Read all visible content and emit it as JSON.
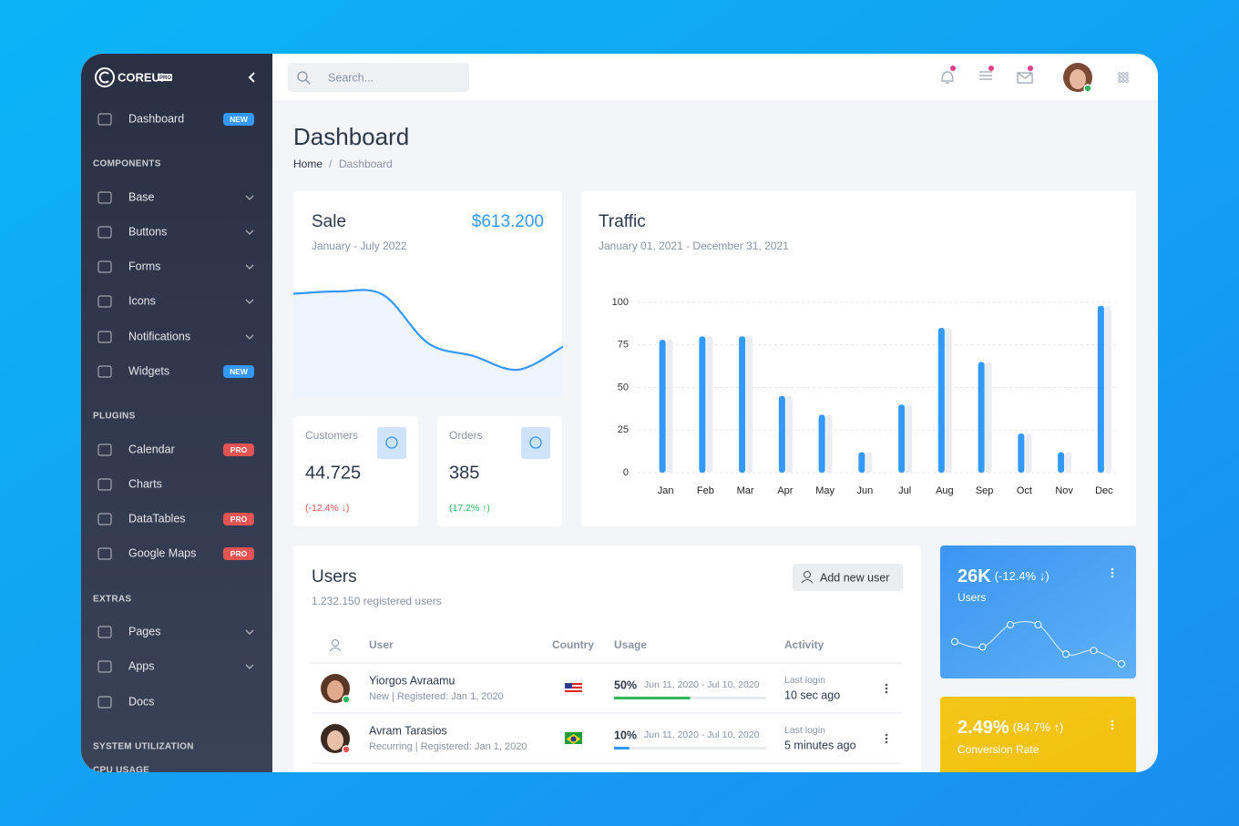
{
  "sidebar": {
    "brand": "COREUI",
    "brand_badge": "PRO",
    "nav": [
      {
        "label": "Dashboard",
        "badge": "NEW",
        "badge_color": "#3399ff"
      },
      {
        "heading": "COMPONENTS"
      },
      {
        "label": "Base",
        "expandable": true
      },
      {
        "label": "Buttons",
        "expandable": true
      },
      {
        "label": "Forms",
        "expandable": true
      },
      {
        "label": "Icons",
        "expandable": true
      },
      {
        "label": "Notifications",
        "expandable": true
      },
      {
        "label": "Widgets",
        "badge": "NEW",
        "badge_color": "#3399ff"
      },
      {
        "heading": "PLUGINS"
      },
      {
        "label": "Calendar",
        "badge": "PRO",
        "badge_color": "#e55353"
      },
      {
        "label": "Charts"
      },
      {
        "label": "DataTables",
        "badge": "PRO",
        "badge_color": "#e55353"
      },
      {
        "label": "Google Maps",
        "badge": "PRO",
        "badge_color": "#e55353"
      },
      {
        "heading": "EXTRAS"
      },
      {
        "label": "Pages",
        "expandable": true
      },
      {
        "label": "Apps",
        "expandable": true
      },
      {
        "label": "Docs"
      },
      {
        "heading": "SYSTEM UTILIZATION"
      },
      {
        "heading": "CPU USAGE"
      }
    ]
  },
  "header": {
    "search_placeholder": "Search..."
  },
  "page": {
    "title": "Dashboard",
    "breadcrumb": [
      "Home",
      "Dashboard"
    ]
  },
  "cards": [
    {
      "label": "Customers",
      "value": "44.725",
      "change": "(-12.4% ↓)",
      "color": "#e55353"
    },
    {
      "label": "Orders",
      "value": "385",
      "change": "(17.2% ↑)",
      "color": "#2eb85c"
    }
  ],
  "users": {
    "title": "Users",
    "subtitle": "1.232.150 registered users",
    "button": "Add new user",
    "columns": [
      "User",
      "Country",
      "Usage",
      "Activity"
    ],
    "rows": [
      {
        "name": "Yiorgos Avraamu",
        "meta": "New | Registered: Jan 1, 2020",
        "status_color": "#2eb85c",
        "usage": {
          "value": 50,
          "label": "50%"
        },
        "period": "Jun 11, 2020 - Jul 10, 2020",
        "bar_color": "#2eb85c",
        "activity_label": "Last login",
        "activity": "10 sec ago"
      },
      {
        "name": "Avram Tarasios",
        "meta": "Recurring | Registered: Jan 1, 2020",
        "status_color": "#e55353",
        "usage": {
          "value": 10,
          "label": "10%"
        },
        "period": "Jun 11, 2020 - Jul 10, 2020",
        "bar_color": "#3399ff",
        "activity_label": "Last login",
        "activity": "5 minutes ago"
      }
    ]
  },
  "widgets": [
    {
      "value": "26K",
      "change": "(-12.4% ↓)",
      "label": "Users"
    },
    {
      "value": "2.49%",
      "change": "(84.7% ↑)",
      "label": "Conversion Rate"
    }
  ],
  "chart_data": [
    {
      "type": "line",
      "title": "Sale",
      "subtitle": "January - July 2022",
      "annotation": "$613.200",
      "values": [
        78,
        80,
        77,
        35,
        24,
        12,
        32
      ],
      "color": "#3399ff",
      "fill": "#eef5fe"
    },
    {
      "type": "bar",
      "title": "Traffic",
      "subtitle": "January 01, 2021 - December 31, 2021",
      "categories": [
        "Jan",
        "Feb",
        "Mar",
        "Apr",
        "May",
        "Jun",
        "Jul",
        "Aug",
        "Sep",
        "Oct",
        "Nov",
        "Dec"
      ],
      "series": [
        {
          "color": "#3399ff",
          "values": [
            78,
            80,
            80,
            45,
            34,
            12,
            40,
            85,
            65,
            23,
            12,
            98
          ]
        },
        {
          "color": "#ebedf2",
          "values": [
            78,
            80,
            80,
            45,
            34,
            12,
            40,
            85,
            65,
            23,
            12,
            98
          ]
        }
      ],
      "ylim": [
        0,
        100
      ],
      "yticks": [
        0,
        25,
        50,
        75,
        100
      ],
      "grid": true
    },
    {
      "type": "line",
      "values": [
        65,
        59,
        84,
        84,
        51,
        55,
        40
      ],
      "color": "#ffffff",
      "markers": true
    }
  ]
}
